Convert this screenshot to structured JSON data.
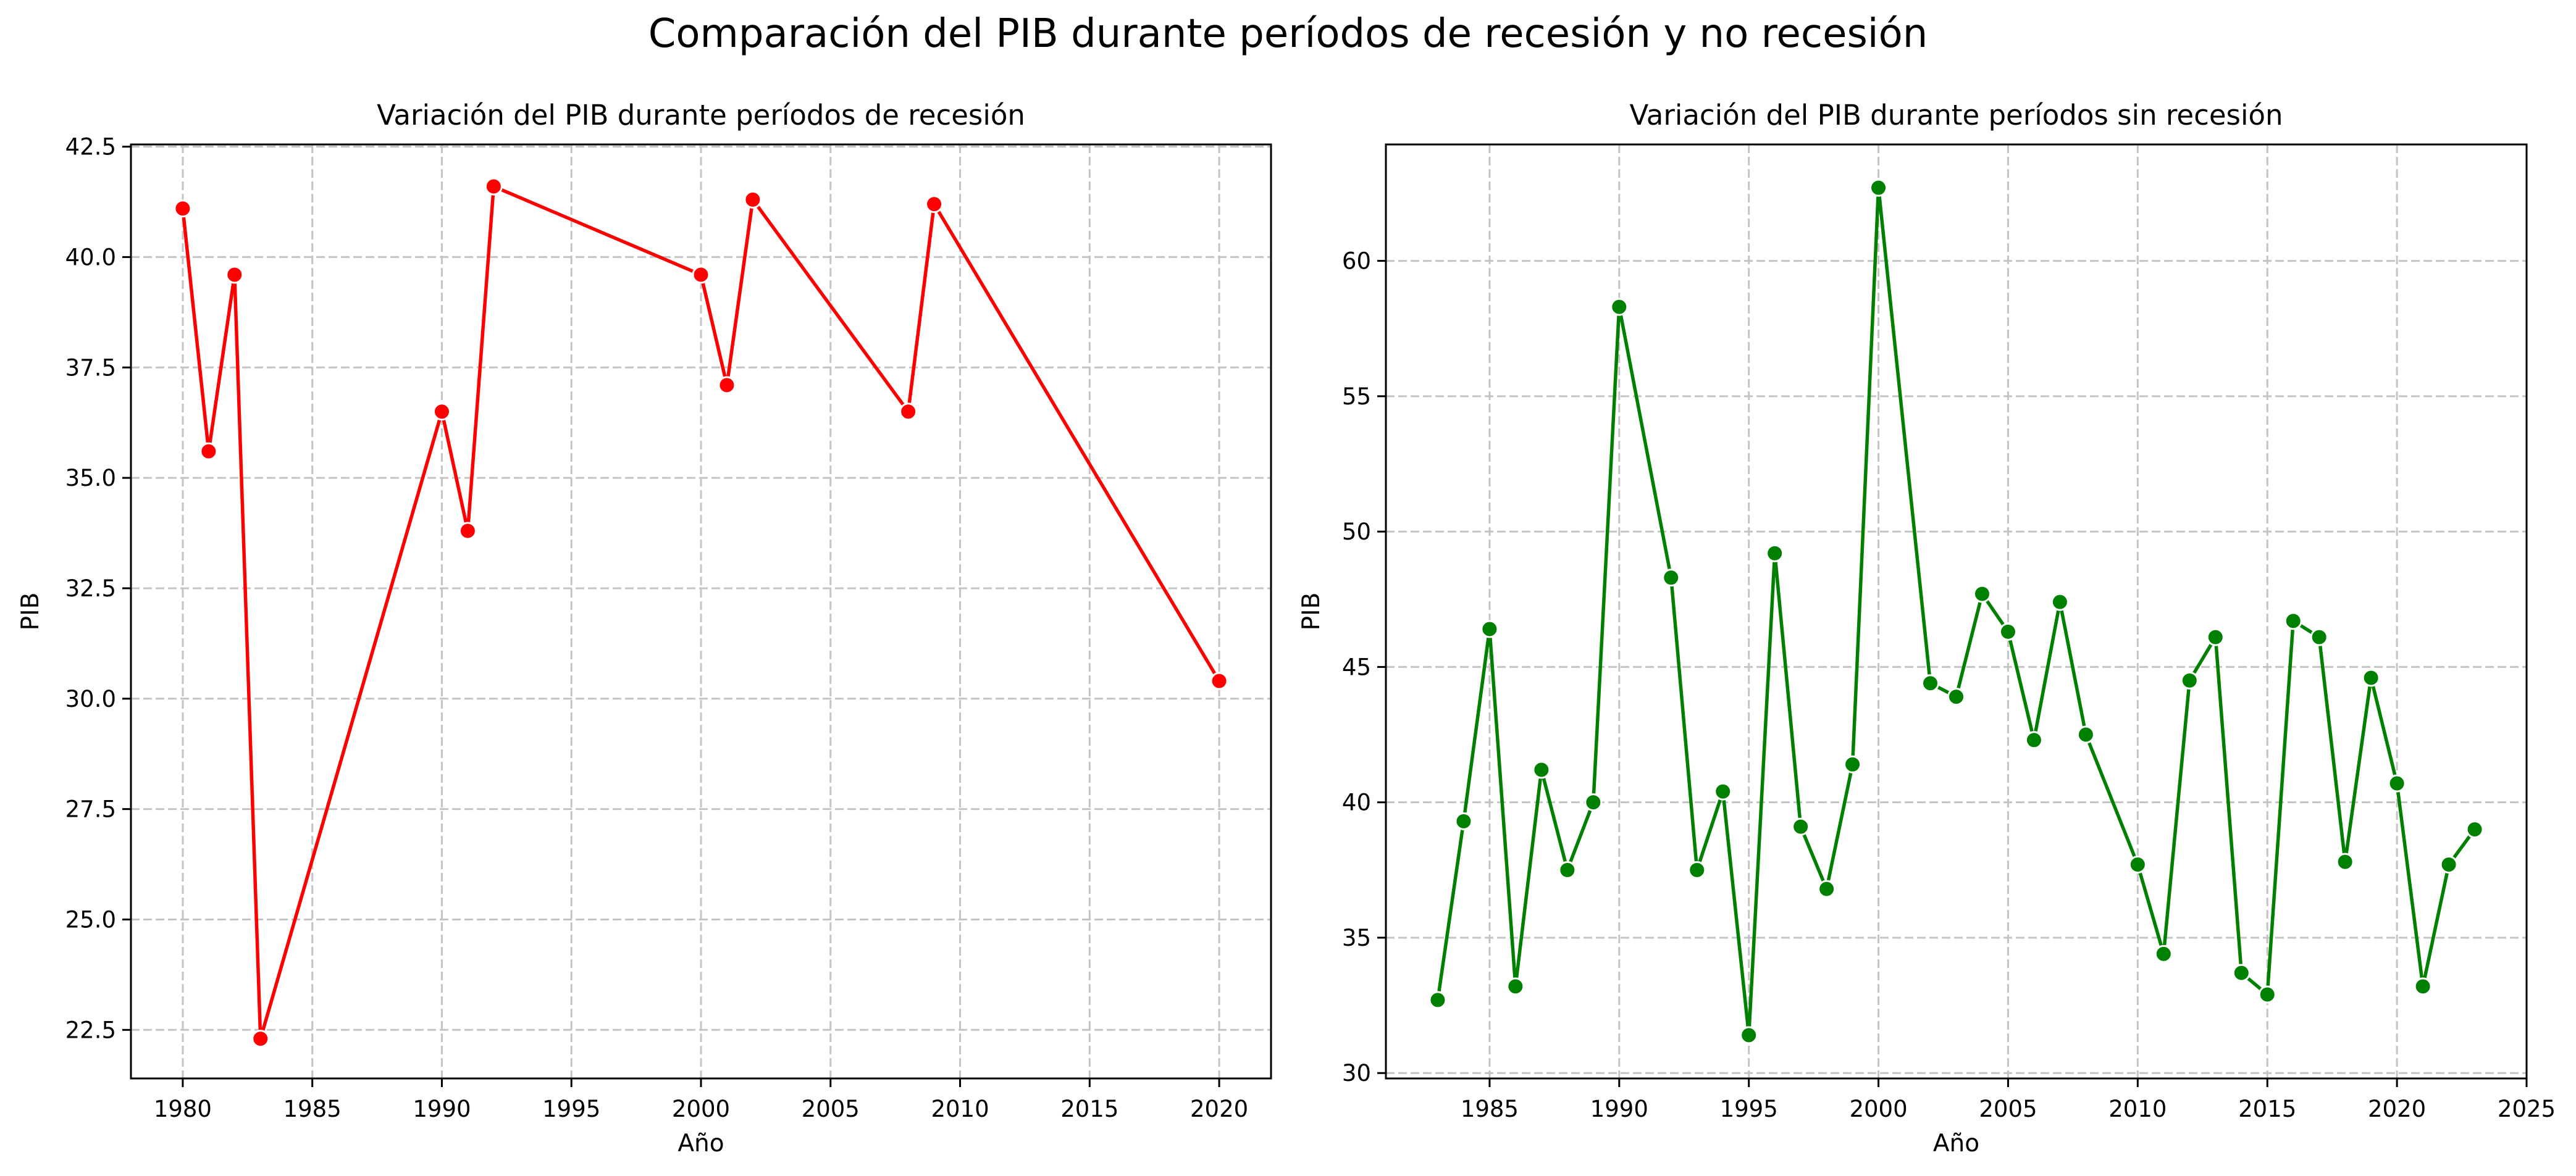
{
  "figure": {
    "suptitle": "Comparación del PIB durante períodos de recesión y no recesión"
  },
  "chart_data": [
    {
      "type": "line",
      "title": "Variación del PIB durante períodos de recesión",
      "xlabel": "Año",
      "ylabel": "PIB",
      "xlim": [
        1978,
        2022
      ],
      "ylim": [
        21.4,
        42.55
      ],
      "xticks": [
        1980,
        1985,
        1990,
        1995,
        2000,
        2005,
        2010,
        2015,
        2020
      ],
      "yticks": [
        22.5,
        25.0,
        27.5,
        30.0,
        32.5,
        35.0,
        37.5,
        40.0,
        42.5
      ],
      "ytick_labels": [
        "22.5",
        "25.0",
        "27.5",
        "30.0",
        "32.5",
        "35.0",
        "37.5",
        "40.0",
        "42.5"
      ],
      "grid": true,
      "color": "#ff0000",
      "x": [
        1980,
        1981,
        1982,
        1983,
        1990,
        1991,
        1992,
        2000,
        2001,
        2002,
        2008,
        2009,
        2020
      ],
      "y": [
        41.1,
        35.6,
        39.6,
        22.3,
        36.5,
        33.8,
        41.6,
        39.6,
        37.1,
        41.3,
        36.5,
        41.2,
        30.4
      ]
    },
    {
      "type": "line",
      "title": "Variación del PIB durante períodos sin recesión",
      "xlabel": "Año",
      "ylabel": "PIB",
      "xlim": [
        1981,
        2025
      ],
      "ylim": [
        29.8,
        64.3
      ],
      "xticks": [
        1985,
        1990,
        1995,
        2000,
        2005,
        2010,
        2015,
        2020,
        2025
      ],
      "yticks": [
        30,
        35,
        40,
        45,
        50,
        55,
        60
      ],
      "ytick_labels": [
        "30",
        "35",
        "40",
        "45",
        "50",
        "55",
        "60"
      ],
      "grid": true,
      "color": "#008000",
      "x": [
        1983,
        1984,
        1985,
        1986,
        1987,
        1988,
        1989,
        1990,
        1992,
        1993,
        1994,
        1995,
        1996,
        1997,
        1998,
        1999,
        2000,
        2002,
        2003,
        2004,
        2005,
        2006,
        2007,
        2008,
        2010,
        2011,
        2012,
        2013,
        2014,
        2015,
        2016,
        2017,
        2018,
        2019,
        2020,
        2021,
        2022,
        2023
      ],
      "y": [
        32.7,
        39.3,
        46.4,
        33.2,
        41.2,
        37.5,
        40.0,
        58.3,
        48.3,
        37.5,
        40.4,
        31.4,
        49.2,
        39.1,
        36.8,
        41.4,
        62.7,
        44.4,
        43.9,
        47.7,
        46.3,
        42.3,
        47.4,
        42.5,
        37.7,
        34.4,
        44.5,
        46.1,
        33.7,
        32.9,
        46.7,
        46.1,
        37.8,
        44.6,
        40.7,
        33.2,
        37.7,
        39.0
      ]
    }
  ]
}
